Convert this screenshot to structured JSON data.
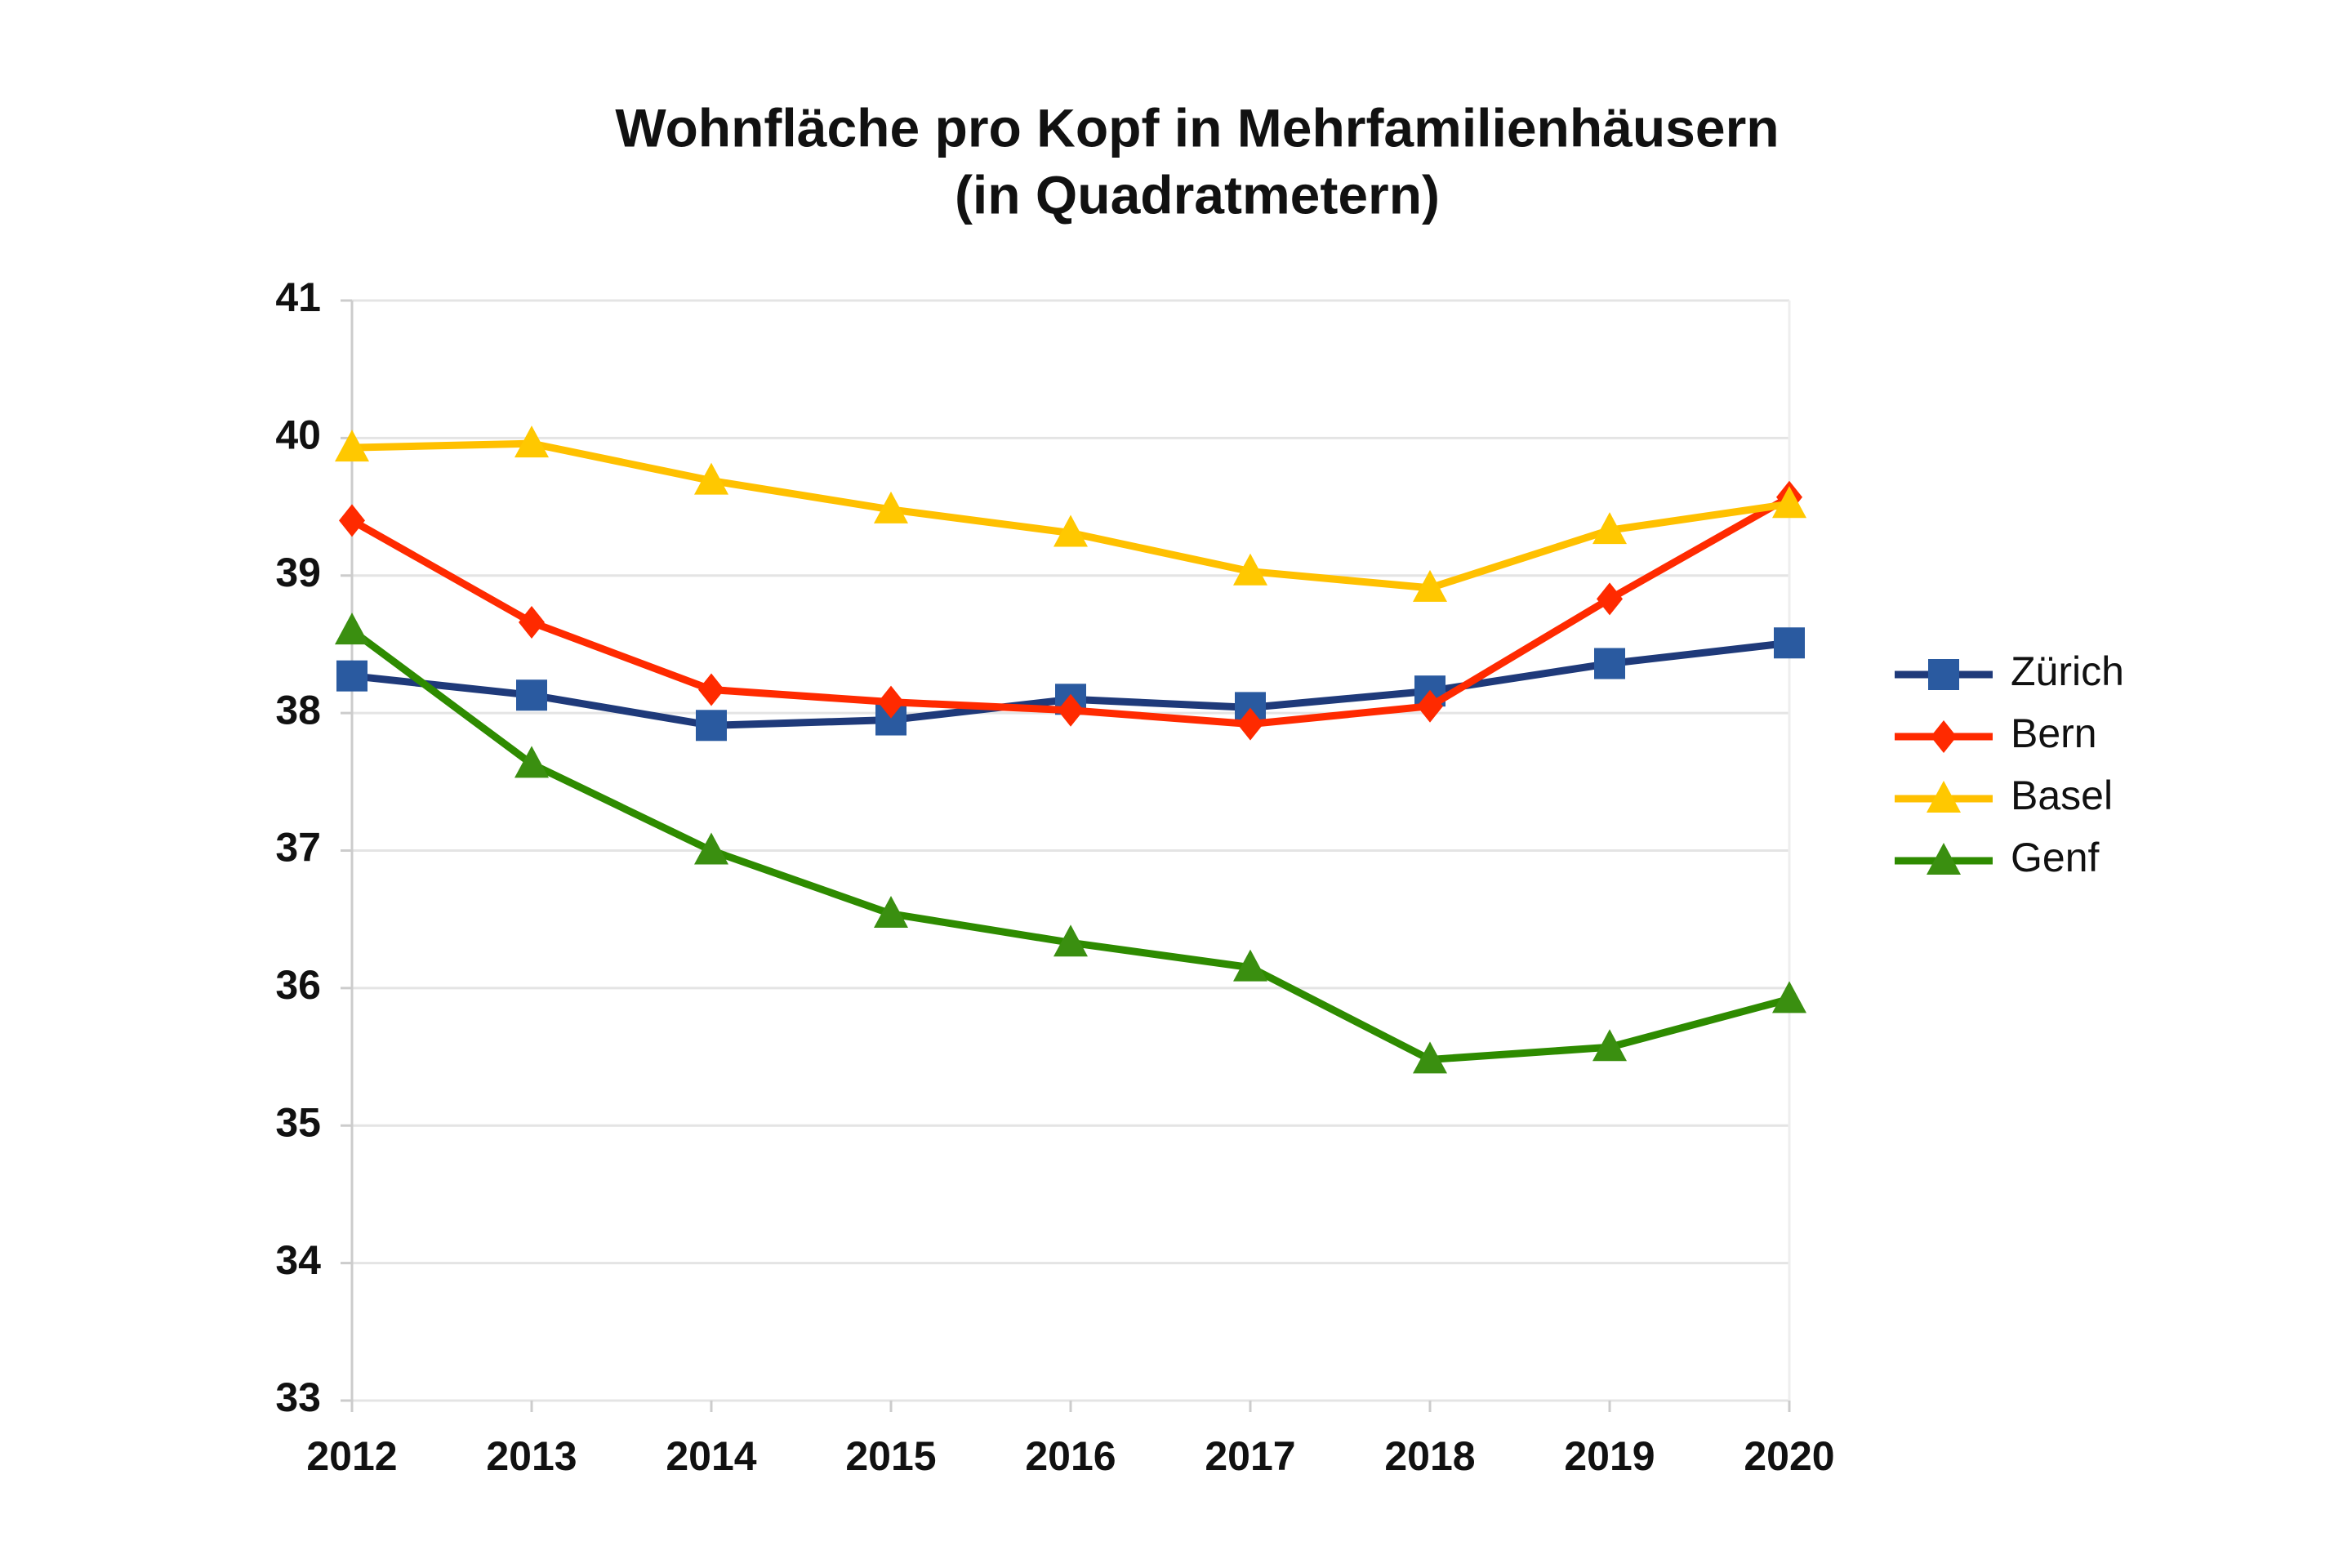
{
  "chart_data": {
    "type": "line",
    "title": "Wohnfläche pro Kopf in Mehrfamilienhäusern",
    "subtitle": "(in Quadratmetern)",
    "categories": [
      "2012",
      "2013",
      "2014",
      "2015",
      "2016",
      "2017",
      "2018",
      "2019",
      "2020"
    ],
    "series": [
      {
        "name": "Zürich",
        "color": "#1f3a7a",
        "marker": "square",
        "marker_color": "#2a5aa0",
        "values": [
          38.27,
          38.13,
          37.91,
          37.95,
          38.1,
          38.04,
          38.16,
          38.36,
          38.51
        ]
      },
      {
        "name": "Bern",
        "color": "#ff2a00",
        "marker": "diamond",
        "marker_color": "#ff2a00",
        "values": [
          39.4,
          38.66,
          38.17,
          38.08,
          38.02,
          37.92,
          38.05,
          38.83,
          39.57
        ]
      },
      {
        "name": "Basel",
        "color": "#ffc000",
        "marker": "triangle",
        "marker_color": "#ffc800",
        "values": [
          39.93,
          39.96,
          39.69,
          39.48,
          39.31,
          39.03,
          38.91,
          39.33,
          39.52
        ]
      },
      {
        "name": "Genf",
        "color": "#2e8b00",
        "marker": "triangle",
        "marker_color": "#3a8f10",
        "values": [
          38.6,
          37.63,
          37.0,
          36.54,
          36.33,
          36.15,
          35.48,
          35.57,
          35.92
        ]
      }
    ],
    "ylim": [
      33,
      41
    ],
    "yticks": [
      33,
      34,
      35,
      36,
      37,
      38,
      39,
      40,
      41
    ],
    "grid": true,
    "legend": "right"
  }
}
